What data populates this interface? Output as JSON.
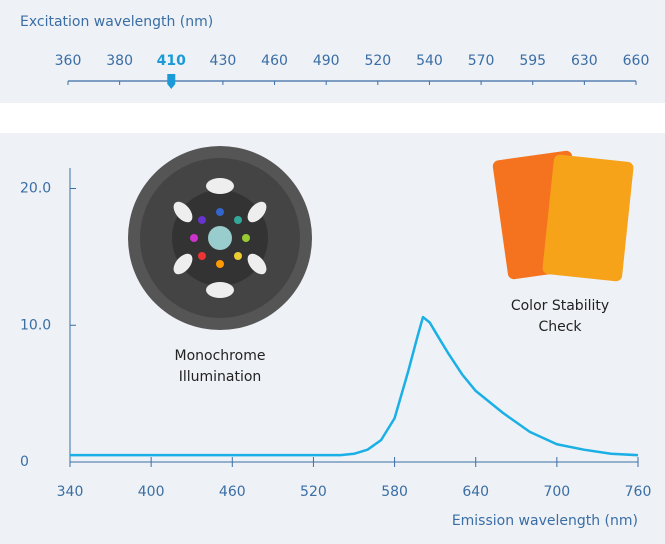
{
  "slider": {
    "label": "Excitation wavelength (nm)",
    "options": [
      360,
      380,
      410,
      430,
      460,
      490,
      520,
      540,
      570,
      595,
      630,
      660
    ],
    "value": 410
  },
  "chart_data": {
    "type": "line",
    "x_label": "Emission wavelength (nm)",
    "annotations": [
      [
        "Monochrome",
        "Illumination"
      ],
      [
        "Color Stability",
        "Check"
      ]
    ],
    "x": [
      340,
      400,
      500,
      540,
      550,
      560,
      570,
      580,
      590,
      597,
      601,
      606,
      612,
      620,
      630,
      640,
      660,
      680,
      700,
      720,
      740,
      760
    ],
    "series": [
      {
        "name": "Emission",
        "color": "#1ab0e6",
        "values": [
          0.5,
          0.5,
          0.5,
          0.5,
          0.6,
          0.9,
          1.6,
          3.2,
          6.6,
          9.2,
          10.6,
          10.2,
          9.2,
          7.9,
          6.4,
          5.2,
          3.6,
          2.2,
          1.3,
          0.9,
          0.6,
          0.5
        ]
      }
    ],
    "xlim": [
      340,
      760
    ],
    "xticks": [
      340,
      400,
      460,
      520,
      580,
      640,
      700,
      760
    ],
    "ylim": [
      0,
      21.5
    ],
    "yticks": [
      0,
      {
        "value": 10,
        "label": "10.0"
      },
      {
        "value": 20,
        "label": "20.0"
      }
    ],
    "grid": false
  }
}
